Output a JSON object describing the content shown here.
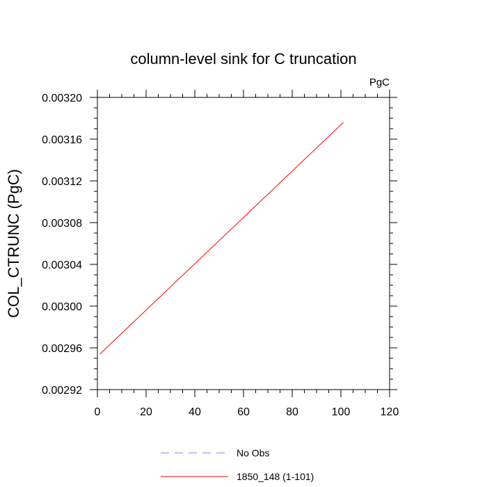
{
  "chart_data": {
    "type": "line",
    "title": "column-level sink for C truncation",
    "units": "PgC",
    "xlabel": "",
    "ylabel": "COL_CTRUNC  (PgC)",
    "xlim": [
      0,
      120
    ],
    "ylim": [
      0.00292,
      0.0032
    ],
    "x_ticks": [
      "0",
      "20",
      "40",
      "60",
      "80",
      "100",
      "120"
    ],
    "y_ticks": [
      "0.00292",
      "0.00296",
      "0.00300",
      "0.00304",
      "0.00308",
      "0.00312",
      "0.00316",
      "0.00320"
    ],
    "grid": false,
    "legend_position": "bottom",
    "series": [
      {
        "name": "No Obs",
        "color": "#8080ff",
        "style": "dashed",
        "x": [],
        "y": []
      },
      {
        "name": "1850_148 (1-101)",
        "color": "#ff0000",
        "style": "solid",
        "x": [
          1,
          101
        ],
        "y": [
          0.002954,
          0.003176
        ]
      }
    ]
  }
}
